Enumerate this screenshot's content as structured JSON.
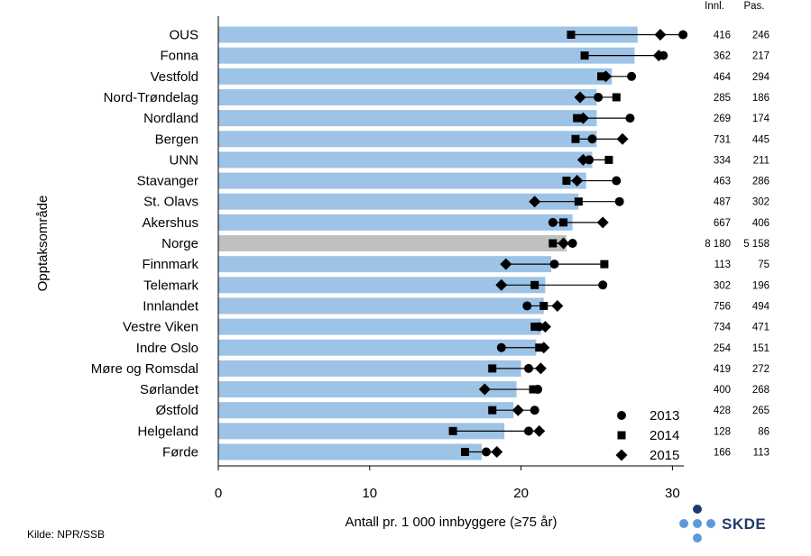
{
  "chart_data": {
    "type": "bar",
    "orientation": "horizontal",
    "categories": [
      "OUS",
      "Fonna",
      "Vestfold",
      "Nord-Trøndelag",
      "Nordland",
      "Bergen",
      "UNN",
      "Stavanger",
      "St. Olavs",
      "Akershus",
      "Norge",
      "Finnmark",
      "Telemark",
      "Innlandet",
      "Vestre Viken",
      "Indre Oslo",
      "Møre og Romsdal",
      "Sørlandet",
      "Østfold",
      "Helgeland",
      "Førde"
    ],
    "highlight_category": "Norge",
    "values": [
      27.7,
      27.5,
      26.0,
      25.0,
      25.0,
      25.0,
      24.7,
      24.3,
      23.8,
      23.4,
      23.0,
      22.0,
      21.6,
      21.5,
      21.3,
      21.0,
      20.0,
      19.7,
      19.5,
      18.9,
      17.4
    ],
    "series": [
      {
        "name": "2013",
        "marker": "circle",
        "values": [
          30.7,
          29.4,
          27.3,
          25.1,
          27.2,
          24.7,
          24.5,
          26.3,
          26.5,
          22.1,
          23.4,
          22.2,
          25.4,
          20.4,
          21.2,
          18.7,
          20.5,
          21.1,
          20.9,
          20.5,
          17.7
        ]
      },
      {
        "name": "2014",
        "marker": "square",
        "values": [
          23.3,
          24.2,
          25.3,
          26.3,
          23.7,
          23.6,
          25.8,
          23.0,
          23.8,
          22.8,
          22.1,
          25.5,
          20.9,
          21.5,
          20.9,
          21.2,
          18.1,
          20.8,
          18.1,
          15.5,
          16.3
        ]
      },
      {
        "name": "2015",
        "marker": "diamond",
        "values": [
          29.2,
          29.1,
          25.6,
          23.9,
          24.1,
          26.7,
          24.1,
          23.7,
          20.9,
          25.4,
          22.8,
          19.0,
          18.7,
          22.4,
          21.6,
          21.5,
          21.3,
          17.6,
          19.8,
          21.2,
          18.4
        ]
      }
    ],
    "table_headers": [
      "Innl.",
      "Pas."
    ],
    "innl": [
      "416",
      "362",
      "464",
      "285",
      "269",
      "731",
      "334",
      "463",
      "487",
      "667",
      "8 180",
      "113",
      "302",
      "756",
      "734",
      "254",
      "419",
      "400",
      "428",
      "128",
      "166"
    ],
    "pas": [
      "246",
      "217",
      "294",
      "186",
      "174",
      "445",
      "211",
      "286",
      "302",
      "406",
      "5 158",
      "75",
      "196",
      "494",
      "471",
      "151",
      "272",
      "268",
      "265",
      "86",
      "113"
    ],
    "xlabel": "Antall pr. 1 000 innbyggere (≥75 år)",
    "ylabel": "Opptaksområde",
    "xlim": [
      0,
      33
    ],
    "xticks": [
      0,
      10,
      20,
      30
    ],
    "grid": false,
    "legend_placement": "bottom-right"
  },
  "colors": {
    "bar": "#9dc3e6",
    "highlight_bar": "#c0c0c0",
    "marker": "#000000",
    "logo_dot": "#5b9bd5",
    "logo_dot_dark": "#1f3a6b"
  },
  "source_text": "Kilde: NPR/SSB",
  "logo_text": "SKDE"
}
